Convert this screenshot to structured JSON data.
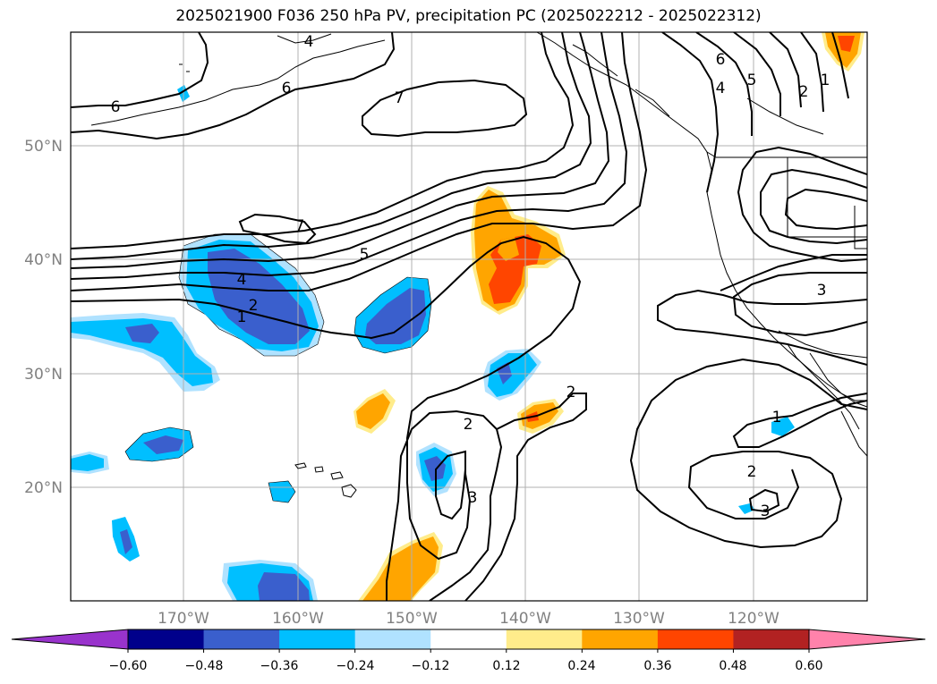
{
  "title": "2025021900 F036 250 hPa PV, precipitation PC (2025022212 - 2025022312)",
  "lat_labels": [
    "50°N",
    "40°N",
    "30°N",
    "20°N"
  ],
  "lon_labels": [
    "170°W",
    "160°W",
    "150°W",
    "140°W",
    "130°W",
    "120°W"
  ],
  "colorbar": {
    "ticks": [
      "−0.60",
      "−0.48",
      "−0.36",
      "−0.24",
      "−0.12",
      "0.12",
      "0.24",
      "0.36",
      "0.48",
      "0.60"
    ],
    "colors": [
      "#9933cc",
      "#00008b",
      "#3a5fcd",
      "#00bfff",
      "#b0e2ff",
      "#ffffff",
      "#ffec8b",
      "#ffa500",
      "#ff4500",
      "#b22222",
      "#ff82ab"
    ]
  },
  "colors": {
    "neg_strong": "#3a5fcd",
    "neg_mid": "#00bfff",
    "neg_weak": "#b0e2ff",
    "pos_weak": "#ffec8b",
    "pos_mid": "#ffa500",
    "pos_strong": "#ff4500"
  },
  "contour_labels": [
    "7",
    "7",
    "6",
    "6",
    "6",
    "5",
    "5",
    "4",
    "4",
    "4",
    "3",
    "3",
    "3",
    "2",
    "2",
    "2",
    "2",
    "2",
    "1",
    "1",
    "1"
  ]
}
